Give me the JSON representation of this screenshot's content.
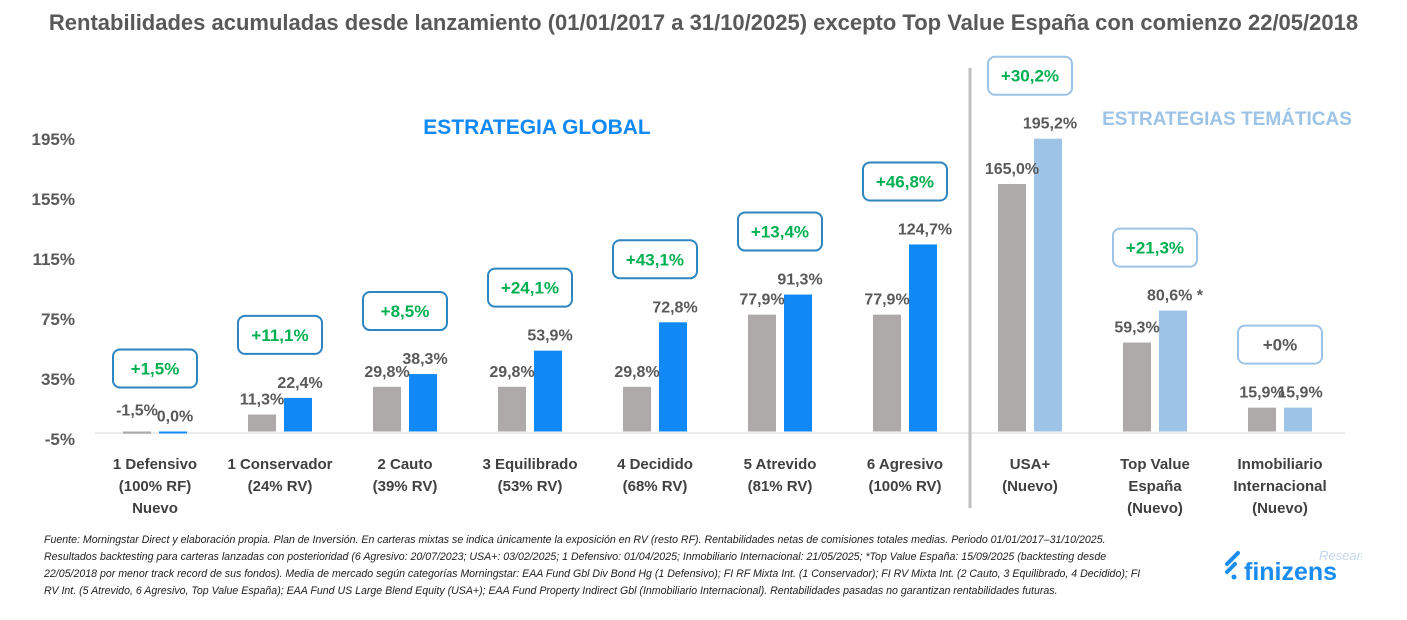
{
  "chart_data": {
    "type": "bar",
    "title": "Rentabilidades acumuladas desde lanzamiento (01/01/2017 a 31/10/2025) excepto Top Value España con comienzo 22/05/2018",
    "ylim": [
      -5,
      195
    ],
    "yticks": [
      "195%",
      "155%",
      "115%",
      "75%",
      "35%",
      "-5%"
    ],
    "ytick_values": [
      195,
      155,
      115,
      75,
      35,
      -5
    ],
    "grid": false,
    "sections": [
      {
        "label": "ESTRATEGIA GLOBAL",
        "color": "#1088f5"
      },
      {
        "label": "ESTRATEGIAS TEMÁTICAS",
        "color": "#9dc3e6"
      }
    ],
    "categories": [
      [
        "1 Defensivo",
        "(100% RF)",
        "Nuevo"
      ],
      [
        "1 Conservador",
        "(24% RV)"
      ],
      [
        "2 Cauto",
        "(39% RV)"
      ],
      [
        "3 Equilibrado",
        "(53% RV)"
      ],
      [
        "4 Decidido",
        "(68% RV)"
      ],
      [
        "5 Atrevido",
        "(81% RV)"
      ],
      [
        "6 Agresivo",
        "(100% RV)"
      ],
      [
        "USA+",
        "(Nuevo)"
      ],
      [
        "Top Value",
        "España",
        "(Nuevo)"
      ],
      [
        "Inmobiliario",
        "Internacional",
        "(Nuevo)"
      ]
    ],
    "series": [
      {
        "values": [
          -1.5,
          11.3,
          29.8,
          29.8,
          29.8,
          77.9,
          77.9,
          165.0,
          59.3,
          15.9
        ],
        "labels": [
          "-1,5%",
          "11,3%",
          "29,8%",
          "29,8%",
          "29,8%",
          "77,9%",
          "77,9%",
          "165,0%",
          "59,3%",
          "15,9%"
        ],
        "color": "#aeaaaa"
      },
      {
        "values": [
          0.0,
          22.4,
          38.3,
          53.9,
          72.8,
          91.3,
          124.7,
          195.2,
          80.6,
          15.9
        ],
        "labels": [
          "0,0%",
          "22,4%",
          "38,3%",
          "53,9%",
          "72,8%",
          "91,3%",
          "124,7%",
          "195,2%",
          "80,6% *",
          "15,9%"
        ],
        "colors": [
          "#1088f5",
          "#1088f5",
          "#1088f5",
          "#1088f5",
          "#1088f5",
          "#1088f5",
          "#1088f5",
          "#9dc3e6",
          "#9dc3e6",
          "#9dc3e6"
        ]
      }
    ],
    "differences": [
      "+1,5%",
      "+11,1%",
      "+8,5%",
      "+24,1%",
      "+43,1%",
      "+13,4%",
      "+46,8%",
      "+30,2%",
      "+21,3%",
      "+0%"
    ],
    "difference_colors": [
      "#00b050",
      "#00b050",
      "#00b050",
      "#00b050",
      "#00b050",
      "#00b050",
      "#00b050",
      "#00b050",
      "#00b050",
      "#595959"
    ]
  },
  "footnote": "Fuente: Morningstar Direct y elaboración propia. Plan de Inversión. En carteras mixtas se indica únicamente la exposición en RV (resto RF). Rentabilidades netas de comisiones totales medias. Periodo 01/01/2017–31/10/2025. Resultados backtesting para carteras lanzadas con posterioridad (6 Agresivo: 20/07/2023; USA+: 03/02/2025; 1 Defensivo: 01/04/2025; Inmobiliario Internacional: 21/05/2025; *Top Value España: 15/09/2025 (backtesting desde 22/05/2018 por menor track record de sus fondos). Media de mercado según categorías Morningstar: EAA Fund Gbl Div Bond Hg (1 Defensivo); FI RF Mixta Int. (1 Conservador); FI RV Mixta Int. (2 Cauto, 3 Equilibrado, 4 Decidido); FI RV Int. (5 Atrevido, 6 Agresivo, Top Value España); EAA Fund US Large Blend Equity (USA+); EAA Fund Property Indirect Gbl (Inmobiliario Internacional). Rentabilidades pasadas no garantizan rentabilidades futuras.",
  "logo": {
    "brand": "finizens",
    "sub": "Research"
  }
}
